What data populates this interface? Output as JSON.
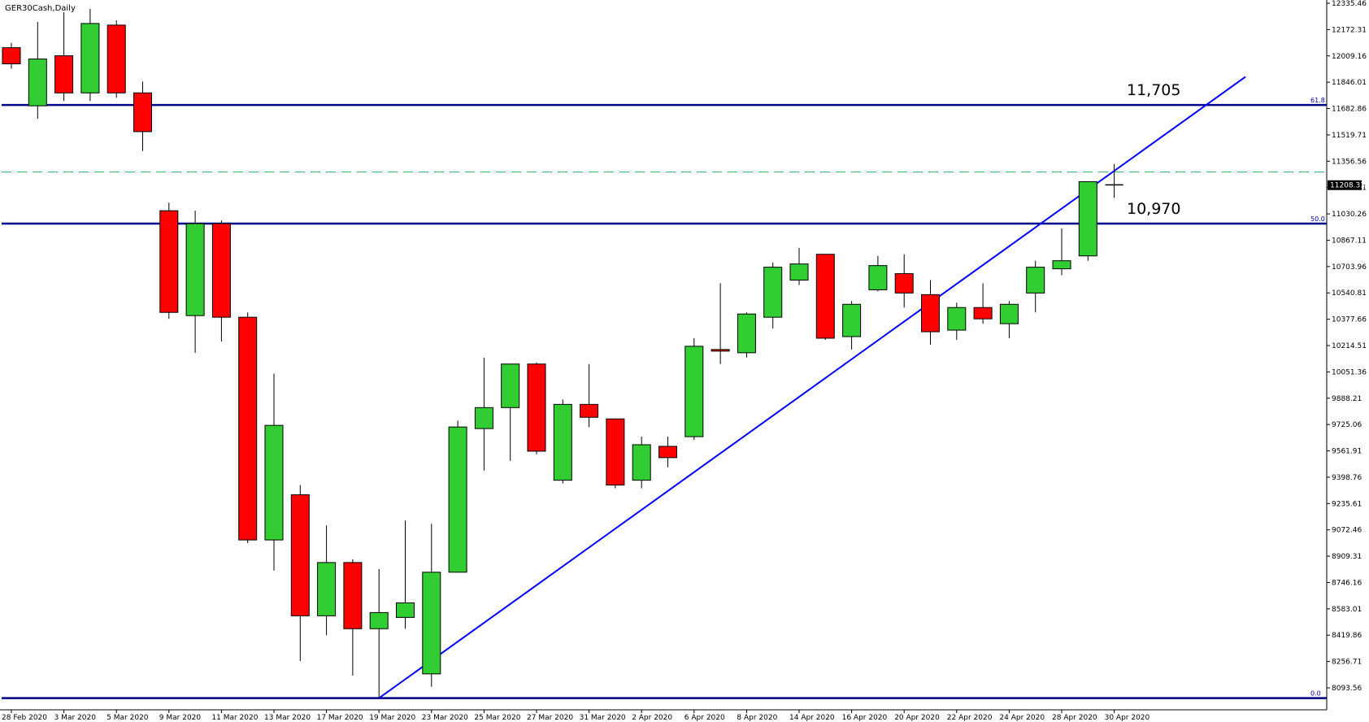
{
  "symbol": "GER30Cash,Daily",
  "chart_data": {
    "type": "candlestick",
    "ylim": [
      8000,
      12335.46
    ],
    "y_ticks": [
      "12335.46",
      "12172.31",
      "12009.16",
      "11846.01",
      "11682.86",
      "11519.71",
      "11356.56",
      "11193.41",
      "11030.26",
      "10867.11",
      "10703.96",
      "10540.81",
      "10377.66",
      "10214.51",
      "10051.36",
      "9888.21",
      "9725.06",
      "9561.91",
      "9398.76",
      "9235.61",
      "9072.46",
      "8909.31",
      "8746.16",
      "8583.01",
      "8419.86",
      "8256.71",
      "8093.56"
    ],
    "x_labels": [
      "28 Feb 2020",
      "3 Mar 2020",
      "5 Mar 2020",
      "9 Mar 2020",
      "11 Mar 2020",
      "13 Mar 2020",
      "17 Mar 2020",
      "19 Mar 2020",
      "23 Mar 2020",
      "25 Mar 2020",
      "27 Mar 2020",
      "31 Mar 2020",
      "2 Apr 2020",
      "6 Apr 2020",
      "8 Apr 2020",
      "14 Apr 2020",
      "16 Apr 2020",
      "20 Apr 2020",
      "22 Apr 2020",
      "24 Apr 2020",
      "28 Apr 2020",
      "30 Apr 2020"
    ],
    "candles": [
      {
        "date": "28 Feb 2020",
        "open": 12060,
        "high": 12090,
        "low": 11930,
        "close": 11960
      },
      {
        "date": "2 Mar 2020",
        "open": 11700,
        "high": 12220,
        "low": 11620,
        "close": 11990
      },
      {
        "date": "3 Mar 2020",
        "open": 12010,
        "high": 12280,
        "low": 11730,
        "close": 11780
      },
      {
        "date": "4 Mar 2020",
        "open": 11780,
        "high": 12300,
        "low": 11730,
        "close": 12210
      },
      {
        "date": "5 Mar 2020",
        "open": 12200,
        "high": 12230,
        "low": 11750,
        "close": 11780
      },
      {
        "date": "6 Mar 2020",
        "open": 11780,
        "high": 11850,
        "low": 11420,
        "close": 11540
      },
      {
        "date": "9 Mar 2020",
        "open": 11050,
        "high": 11100,
        "low": 10380,
        "close": 10420
      },
      {
        "date": "10 Mar 2020",
        "open": 10400,
        "high": 11050,
        "low": 10170,
        "close": 10970
      },
      {
        "date": "11 Mar 2020",
        "open": 10970,
        "high": 10990,
        "low": 10240,
        "close": 10390
      },
      {
        "date": "12 Mar 2020",
        "open": 10390,
        "high": 10420,
        "low": 8990,
        "close": 9010
      },
      {
        "date": "13 Mar 2020",
        "open": 9010,
        "high": 10040,
        "low": 8820,
        "close": 9720
      },
      {
        "date": "16 Mar 2020",
        "open": 9290,
        "high": 9350,
        "low": 8260,
        "close": 8540
      },
      {
        "date": "17 Mar 2020",
        "open": 8540,
        "high": 9100,
        "low": 8420,
        "close": 8870
      },
      {
        "date": "18 Mar 2020",
        "open": 8870,
        "high": 8890,
        "low": 8170,
        "close": 8460
      },
      {
        "date": "19 Mar 2020",
        "open": 8460,
        "high": 8830,
        "low": 8030,
        "close": 8560
      },
      {
        "date": "20 Mar 2020",
        "open": 8530,
        "high": 9130,
        "low": 8460,
        "close": 8620
      },
      {
        "date": "23 Mar 2020",
        "open": 8180,
        "high": 9110,
        "low": 8100,
        "close": 8810
      },
      {
        "date": "24 Mar 2020",
        "open": 8810,
        "high": 9750,
        "low": 8810,
        "close": 9710
      },
      {
        "date": "25 Mar 2020",
        "open": 9700,
        "high": 10140,
        "low": 9440,
        "close": 9830
      },
      {
        "date": "26 Mar 2020",
        "open": 9830,
        "high": 10090,
        "low": 9500,
        "close": 10100
      },
      {
        "date": "27 Mar 2020",
        "open": 10100,
        "high": 10110,
        "low": 9540,
        "close": 9560
      },
      {
        "date": "30 Mar 2020",
        "open": 9380,
        "high": 9880,
        "low": 9360,
        "close": 9850
      },
      {
        "date": "31 Mar 2020",
        "open": 9850,
        "high": 10100,
        "low": 9710,
        "close": 9770
      },
      {
        "date": "1 Apr 2020",
        "open": 9760,
        "high": 9760,
        "low": 9330,
        "close": 9350
      },
      {
        "date": "2 Apr 2020",
        "open": 9380,
        "high": 9650,
        "low": 9330,
        "close": 9600
      },
      {
        "date": "3 Apr 2020",
        "open": 9590,
        "high": 9650,
        "low": 9460,
        "close": 9520
      },
      {
        "date": "6 Apr 2020",
        "open": 9650,
        "high": 10260,
        "low": 9630,
        "close": 10210
      },
      {
        "date": "7 Apr 2020",
        "open": 10190,
        "high": 10600,
        "low": 10100,
        "close": 10180
      },
      {
        "date": "8 Apr 2020",
        "open": 10170,
        "high": 10420,
        "low": 10140,
        "close": 10410
      },
      {
        "date": "9 Apr 2020",
        "open": 10390,
        "high": 10730,
        "low": 10320,
        "close": 10700
      },
      {
        "date": "14 Apr 2020",
        "open": 10620,
        "high": 10820,
        "low": 10590,
        "close": 10720
      },
      {
        "date": "15 Apr 2020",
        "open": 10780,
        "high": 10780,
        "low": 10250,
        "close": 10260
      },
      {
        "date": "16 Apr 2020",
        "open": 10270,
        "high": 10490,
        "low": 10190,
        "close": 10470
      },
      {
        "date": "17 Apr 2020",
        "open": 10560,
        "high": 10770,
        "low": 10550,
        "close": 10710
      },
      {
        "date": "20 Apr 2020",
        "open": 10660,
        "high": 10780,
        "low": 10450,
        "close": 10540
      },
      {
        "date": "21 Apr 2020",
        "open": 10530,
        "high": 10620,
        "low": 10220,
        "close": 10300
      },
      {
        "date": "22 Apr 2020",
        "open": 10310,
        "high": 10480,
        "low": 10250,
        "close": 10450
      },
      {
        "date": "23 Apr 2020",
        "open": 10450,
        "high": 10600,
        "low": 10350,
        "close": 10380
      },
      {
        "date": "24 Apr 2020",
        "open": 10350,
        "high": 10490,
        "low": 10260,
        "close": 10470
      },
      {
        "date": "27 Apr 2020",
        "open": 10540,
        "high": 10740,
        "low": 10420,
        "close": 10700
      },
      {
        "date": "28 Apr 2020",
        "open": 10690,
        "high": 10940,
        "low": 10650,
        "close": 10740
      },
      {
        "date": "29 Apr 2020",
        "open": 10770,
        "high": 11230,
        "low": 10740,
        "close": 11230
      },
      {
        "date": "30 Apr 2020",
        "open": 11210,
        "high": 11340,
        "low": 11130,
        "close": 11200
      }
    ],
    "horizontal_levels": [
      {
        "value": 11705,
        "label": "11,705",
        "fib": "61.8"
      },
      {
        "value": 10970,
        "label": "10,970",
        "fib": "50.0"
      },
      {
        "value": 8030,
        "label": "",
        "fib": "0.0"
      }
    ],
    "current_price": "11208.33",
    "current_price_value": 11208.33,
    "dashed_level": 11290,
    "trendline": {
      "from": {
        "date": "19 Mar 2020",
        "price": 8030
      },
      "to": {
        "date": "7 May 2020",
        "price": 11880
      }
    },
    "colors": {
      "bull": "#32cd32",
      "bear": "#ff0000",
      "outline": "#000000",
      "levels": "#00008b",
      "trendline": "#0000ff",
      "dashed": "#3cb371"
    }
  }
}
